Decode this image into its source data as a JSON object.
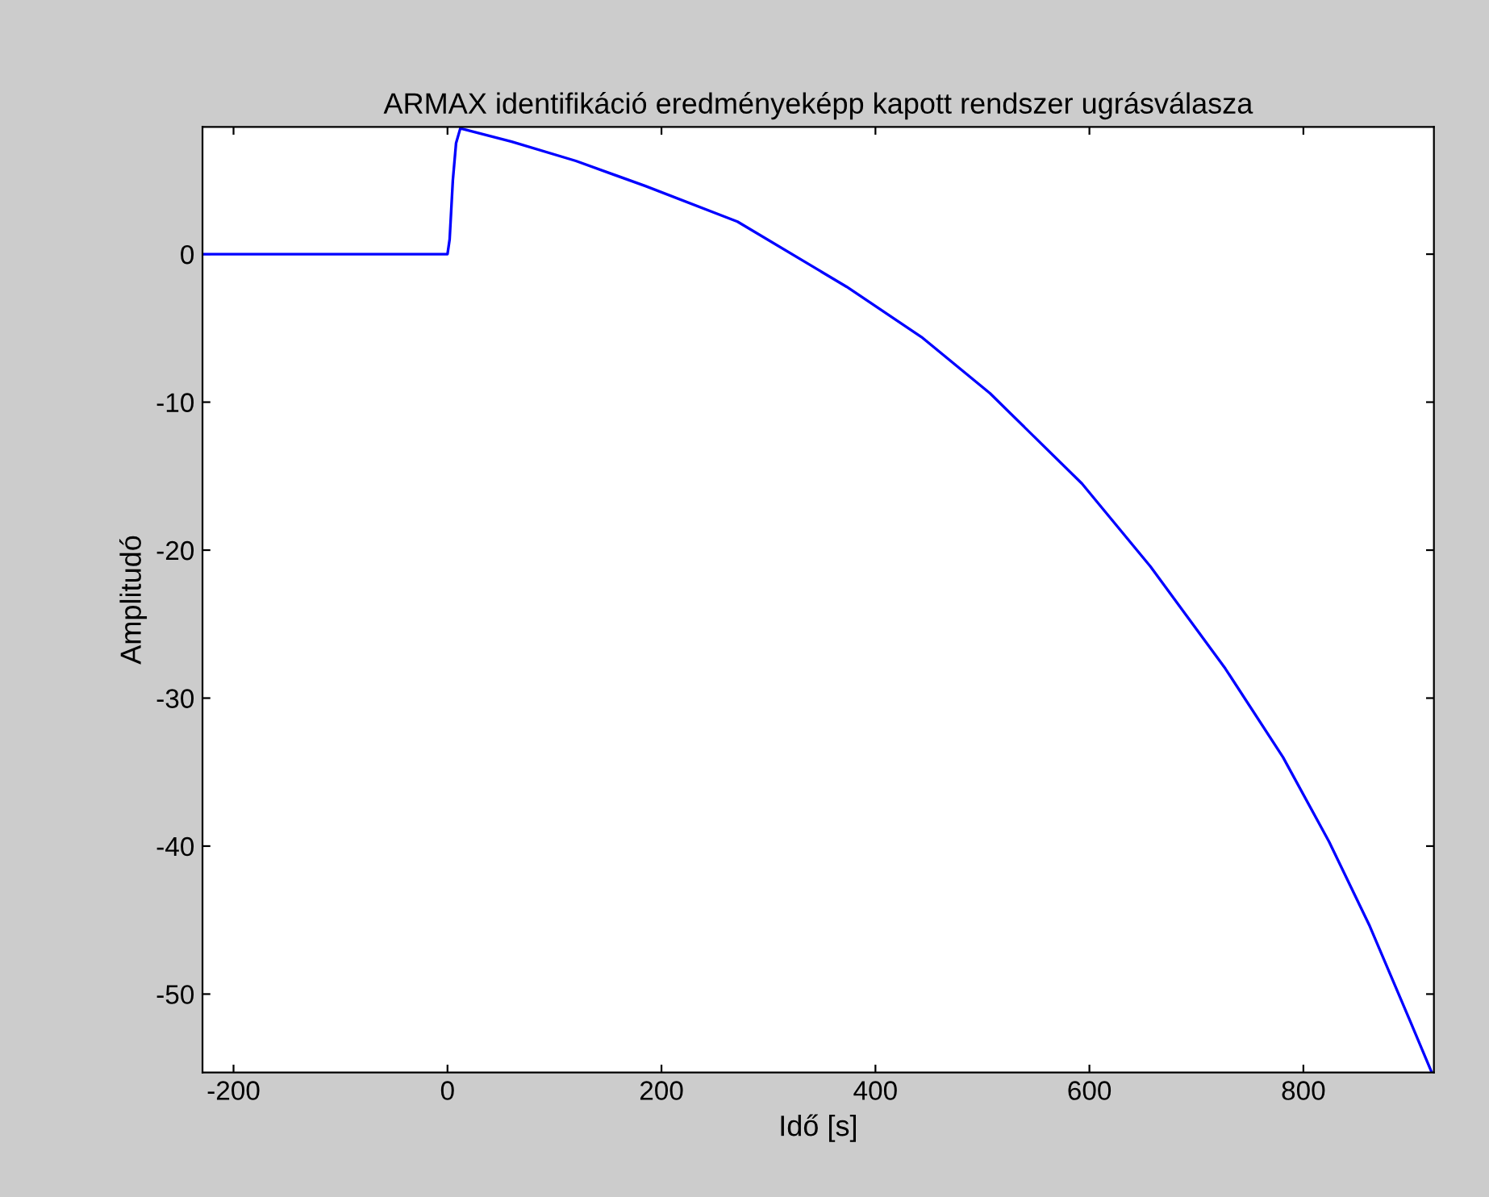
{
  "chart_data": {
    "type": "line",
    "title": "ARMAX identifikáció eredményeképp kapott rendszer ugrásválasza",
    "xlabel": "Idő [s]",
    "ylabel": "Amplitudó",
    "xlim": [
      -229,
      922
    ],
    "ylim": [
      -55.3,
      8.6
    ],
    "xticks": [
      -200,
      0,
      200,
      400,
      600,
      800
    ],
    "yticks": [
      -50,
      -40,
      -30,
      -20,
      -10,
      0
    ],
    "grid": false,
    "legend": false,
    "series": [
      {
        "color": "#0000ff",
        "x": [
          -229,
          0,
          2,
          5,
          8,
          12,
          60,
          120,
          185,
          271,
          373,
          443,
          507,
          593,
          657,
          727,
          781,
          824,
          862,
          902,
          920
        ],
        "values": [
          0,
          0,
          1,
          5,
          7.5,
          8.5,
          7.6,
          6.3,
          4.6,
          2.2,
          -2.2,
          -5.6,
          -9.4,
          -15.5,
          -21.1,
          -28.0,
          -34.0,
          -39.7,
          -45.4,
          -52.2,
          -55.3
        ]
      }
    ]
  }
}
